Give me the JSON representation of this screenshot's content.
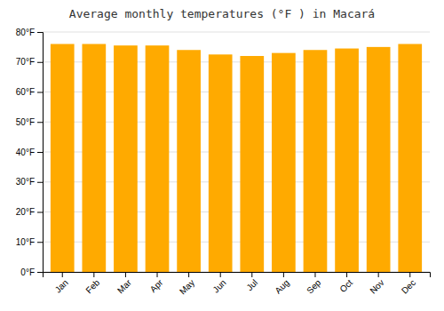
{
  "chart_data": {
    "type": "bar",
    "title": "Average monthly temperatures (°F ) in Macará",
    "categories": [
      "Jan",
      "Feb",
      "Mar",
      "Apr",
      "May",
      "Jun",
      "Jul",
      "Aug",
      "Sep",
      "Oct",
      "Nov",
      "Dec"
    ],
    "values": [
      76,
      76,
      75.5,
      75.5,
      74,
      72.5,
      72,
      73,
      74,
      74.5,
      75,
      76
    ],
    "color": "#FFAA00",
    "ylim": [
      0,
      80
    ],
    "yticks": [
      {
        "value": 0,
        "label": "0°F"
      },
      {
        "value": 10,
        "label": "10°F"
      },
      {
        "value": 20,
        "label": "20°F"
      },
      {
        "value": 30,
        "label": "30°F"
      },
      {
        "value": 40,
        "label": "40°F"
      },
      {
        "value": 50,
        "label": "50°F"
      },
      {
        "value": 60,
        "label": "60°F"
      },
      {
        "value": 70,
        "label": "70°F"
      },
      {
        "value": 80,
        "label": "80°F"
      }
    ],
    "grid": true
  }
}
